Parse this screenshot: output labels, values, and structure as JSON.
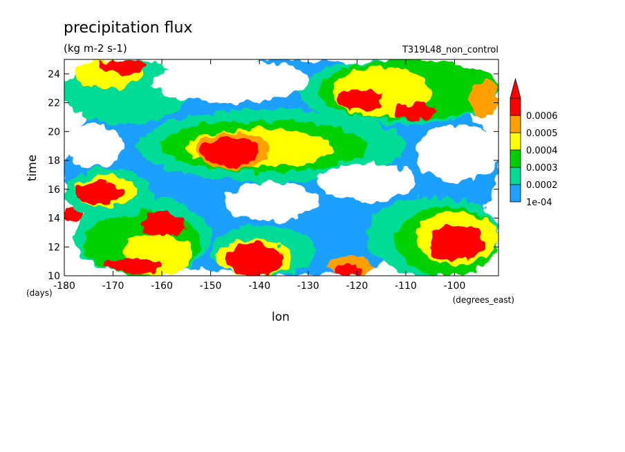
{
  "chart_data": {
    "type": "heatmap",
    "title": "precipitation flux",
    "subtitle": "(kg m-2 s-1)",
    "run_label": "T319L48_non_control",
    "xlabel": "lon",
    "xunit": "(degrees_east)",
    "ylabel": "time",
    "yunit": "(days)",
    "xlim": [
      -180,
      -91
    ],
    "ylim": [
      10,
      25
    ],
    "xticks": [
      -180,
      -170,
      -160,
      -150,
      -140,
      -130,
      -120,
      -110,
      -100
    ],
    "xtick_labels": [
      "-180",
      "-170",
      "-160",
      "-150",
      "-140",
      "-130",
      "-120",
      "-110",
      "-100"
    ],
    "yticks": [
      10,
      12,
      14,
      16,
      18,
      20,
      22,
      24
    ],
    "ytick_labels": [
      "10",
      "12",
      "14",
      "16",
      "18",
      "20",
      "22",
      "24"
    ],
    "colorbar": {
      "levels": [
        0.0001,
        0.0002,
        0.0003,
        0.0004,
        0.0005,
        0.0006
      ],
      "labels": [
        "1e-04",
        "0.0002",
        "0.0003",
        "0.0004",
        "0.0005",
        "0.0006"
      ],
      "colors": [
        "#1ea0ff",
        "#00dc96",
        "#00d000",
        "#ffff00",
        "#ffa000",
        "#ff0000"
      ],
      "extend": "max"
    },
    "regions": [
      {
        "level": 1,
        "lon": [
          -180,
          -91
        ],
        "time": [
          10,
          25
        ]
      },
      {
        "level": 2,
        "lon": [
          -178,
          -150
        ],
        "time": [
          10,
          15.5
        ]
      },
      {
        "level": 3,
        "lon": [
          -176,
          -152
        ],
        "time": [
          10,
          14.5
        ]
      },
      {
        "level": 4,
        "lon": [
          -168,
          -154
        ],
        "time": [
          10,
          13
        ]
      },
      {
        "level": 6,
        "lon": [
          -172,
          -160
        ],
        "time": [
          10.2,
          11.2
        ]
      },
      {
        "level": 6,
        "lon": [
          -164,
          -155
        ],
        "time": [
          12.8,
          14.4
        ]
      },
      {
        "level": 6,
        "lon": [
          -180,
          -176
        ],
        "time": [
          13.8,
          14.8
        ]
      },
      {
        "level": 2,
        "lon": [
          -180,
          -162
        ],
        "time": [
          14,
          17.5
        ]
      },
      {
        "level": 4,
        "lon": [
          -178,
          -165
        ],
        "time": [
          14.8,
          17
        ]
      },
      {
        "level": 6,
        "lon": [
          -178,
          -168
        ],
        "time": [
          15,
          16.5
        ]
      },
      {
        "level": 2,
        "lon": [
          -150,
          -128
        ],
        "time": [
          10,
          13.5
        ]
      },
      {
        "level": 4,
        "lon": [
          -149,
          -133
        ],
        "time": [
          10,
          12.5
        ]
      },
      {
        "level": 6,
        "lon": [
          -147,
          -135
        ],
        "time": [
          10,
          12.3
        ]
      },
      {
        "level": 5,
        "lon": [
          -126,
          -117
        ],
        "time": [
          10,
          11.3
        ]
      },
      {
        "level": 6,
        "lon": [
          -125,
          -119
        ],
        "time": [
          10,
          10.8
        ]
      },
      {
        "level": 2,
        "lon": [
          -118,
          -91
        ],
        "time": [
          10,
          15.5
        ]
      },
      {
        "level": 3,
        "lon": [
          -112,
          -91
        ],
        "time": [
          10,
          14.8
        ]
      },
      {
        "level": 4,
        "lon": [
          -108,
          -91
        ],
        "time": [
          10.8,
          14.4
        ]
      },
      {
        "level": 6,
        "lon": [
          -105,
          -94
        ],
        "time": [
          11,
          13.6
        ]
      },
      {
        "level": 2,
        "lon": [
          -165,
          -110
        ],
        "time": [
          16.5,
          21.5
        ]
      },
      {
        "level": 3,
        "lon": [
          -160,
          -118
        ],
        "time": [
          17.2,
          20.8
        ]
      },
      {
        "level": 4,
        "lon": [
          -155,
          -125
        ],
        "time": [
          17.5,
          20.2
        ]
      },
      {
        "level": 5,
        "lon": [
          -153,
          -138
        ],
        "time": [
          17.4,
          20
        ]
      },
      {
        "level": 6,
        "lon": [
          -152,
          -140
        ],
        "time": [
          17.6,
          19.6
        ]
      },
      {
        "level": 2,
        "lon": [
          -180,
          -155
        ],
        "time": [
          20.5,
          25
        ]
      },
      {
        "level": 4,
        "lon": [
          -178,
          -164
        ],
        "time": [
          23,
          25
        ]
      },
      {
        "level": 6,
        "lon": [
          -173,
          -163
        ],
        "time": [
          24,
          25
        ]
      },
      {
        "level": 2,
        "lon": [
          -132,
          -91
        ],
        "time": [
          20.5,
          25
        ]
      },
      {
        "level": 3,
        "lon": [
          -128,
          -91
        ],
        "time": [
          20.8,
          25
        ]
      },
      {
        "level": 4,
        "lon": [
          -125,
          -105
        ],
        "time": [
          21,
          24.5
        ]
      },
      {
        "level": 6,
        "lon": [
          -124,
          -115
        ],
        "time": [
          21.5,
          23
        ]
      },
      {
        "level": 6,
        "lon": [
          -112,
          -104
        ],
        "time": [
          20.8,
          22
        ]
      },
      {
        "level": 5,
        "lon": [
          -97,
          -91
        ],
        "time": [
          21,
          23.5
        ]
      },
      {
        "level": 0,
        "lon": [
          -162,
          -130
        ],
        "time": [
          22,
          25
        ]
      },
      {
        "level": 0,
        "lon": [
          -128,
          -108
        ],
        "time": [
          15.2,
          17.8
        ]
      },
      {
        "level": 0,
        "lon": [
          -147,
          -128
        ],
        "time": [
          13.8,
          16.5
        ]
      },
      {
        "level": 0,
        "lon": [
          -108,
          -91
        ],
        "time": [
          16.5,
          20.5
        ]
      },
      {
        "level": 0,
        "lon": [
          -180,
          -168
        ],
        "time": [
          17.5,
          20.5
        ]
      }
    ]
  }
}
